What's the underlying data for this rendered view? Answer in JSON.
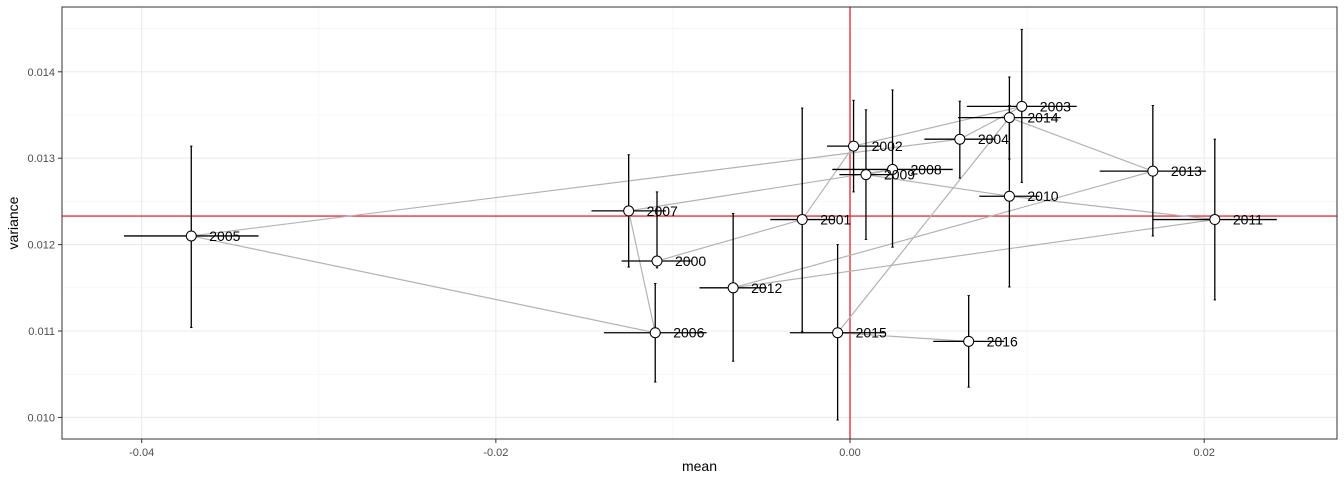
{
  "chart_data": {
    "type": "scatter",
    "title": "",
    "xlabel": "mean",
    "ylabel": "variance",
    "xlim": [
      -0.0445,
      0.0275
    ],
    "ylim": [
      0.00975,
      0.01475
    ],
    "x_ticks": [
      -0.04,
      -0.02,
      0.0,
      0.02
    ],
    "x_tick_labels": [
      "-0.04",
      "-0.02",
      "0.00",
      "0.02"
    ],
    "y_ticks": [
      0.01,
      0.011,
      0.012,
      0.013,
      0.014
    ],
    "y_tick_labels": [
      "0.010",
      "0.011",
      "0.012",
      "0.013",
      "0.014"
    ],
    "grid": true,
    "reference_lines": {
      "vline_x": 0.0,
      "hline_y": 0.01233,
      "color": "#e8333a"
    },
    "path_color": "#b3b3b3",
    "points": [
      {
        "label": "2000",
        "x": -0.0109,
        "y": 0.01181,
        "x_err": 0.002,
        "y_err_low": 0.01173,
        "y_err_high": 0.01261
      },
      {
        "label": "2001",
        "x": -0.0027,
        "y": 0.01229,
        "x_err": 0.0018,
        "y_err_low": 0.01099,
        "y_err_high": 0.01358
      },
      {
        "label": "2002",
        "x": 0.0002,
        "y": 0.01314,
        "x_err": 0.0015,
        "y_err_low": 0.01261,
        "y_err_high": 0.01367
      },
      {
        "label": "2003",
        "x": 0.0097,
        "y": 0.0136,
        "x_err": 0.0031,
        "y_err_low": 0.01272,
        "y_err_high": 0.01449
      },
      {
        "label": "2004",
        "x": 0.0062,
        "y": 0.01322,
        "x_err": 0.002,
        "y_err_low": 0.01277,
        "y_err_high": 0.01366
      },
      {
        "label": "2005",
        "x": -0.0372,
        "y": 0.0121,
        "x_err": 0.0038,
        "y_err_low": 0.01104,
        "y_err_high": 0.01314
      },
      {
        "label": "2006",
        "x": -0.011,
        "y": 0.01098,
        "x_err": 0.0029,
        "y_err_low": 0.01041,
        "y_err_high": 0.01155
      },
      {
        "label": "2007",
        "x": -0.0125,
        "y": 0.01239,
        "x_err": 0.0021,
        "y_err_low": 0.01174,
        "y_err_high": 0.01304
      },
      {
        "label": "2008",
        "x": 0.0024,
        "y": 0.01287,
        "x_err": 0.0034,
        "y_err_low": 0.01197,
        "y_err_high": 0.01379
      },
      {
        "label": "2009",
        "x": 0.0009,
        "y": 0.01281,
        "x_err": 0.0015,
        "y_err_low": 0.01206,
        "y_err_high": 0.01356
      },
      {
        "label": "2010",
        "x": 0.009,
        "y": 0.01256,
        "x_err": 0.0017,
        "y_err_low": 0.01151,
        "y_err_high": 0.01361
      },
      {
        "label": "2011",
        "x": 0.0206,
        "y": 0.01229,
        "x_err": 0.0035,
        "y_err_low": 0.01136,
        "y_err_high": 0.01322
      },
      {
        "label": "2012",
        "x": -0.0066,
        "y": 0.0115,
        "x_err": 0.0019,
        "y_err_low": 0.01065,
        "y_err_high": 0.01236
      },
      {
        "label": "2013",
        "x": 0.0171,
        "y": 0.01285,
        "x_err": 0.003,
        "y_err_low": 0.0121,
        "y_err_high": 0.01361
      },
      {
        "label": "2014",
        "x": 0.009,
        "y": 0.01347,
        "x_err": 0.0029,
        "y_err_low": 0.01299,
        "y_err_high": 0.01394
      },
      {
        "label": "2015",
        "x": -0.0007,
        "y": 0.01098,
        "x_err": 0.0027,
        "y_err_low": 0.00997,
        "y_err_high": 0.012
      },
      {
        "label": "2016",
        "x": 0.0067,
        "y": 0.01088,
        "x_err": 0.002,
        "y_err_low": 0.01035,
        "y_err_high": 0.01141
      }
    ]
  }
}
